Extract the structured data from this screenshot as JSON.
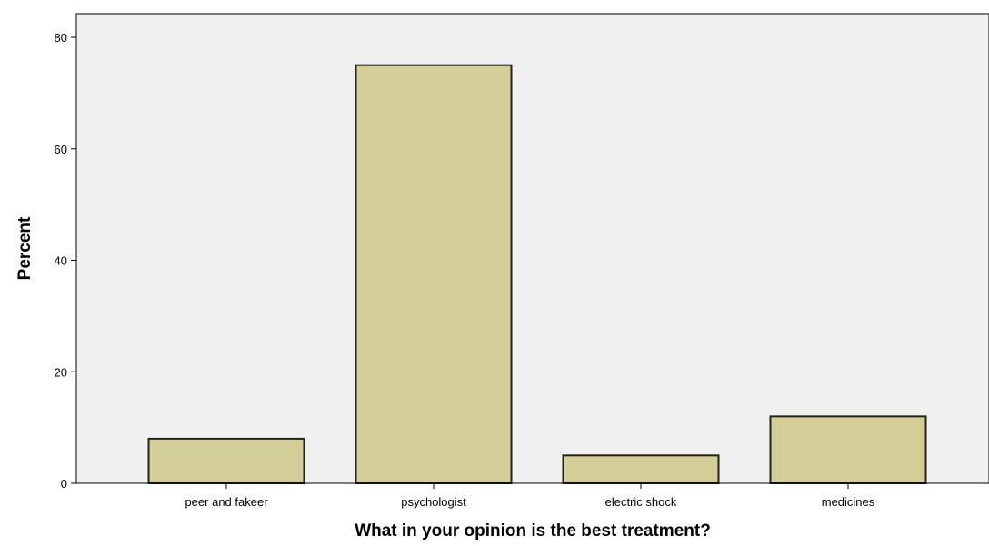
{
  "chart_data": {
    "type": "bar",
    "categories": [
      "peer and fakeer",
      "psychologist",
      "electric shock",
      "medicines"
    ],
    "values": [
      8,
      75,
      5,
      12
    ],
    "title": "",
    "xlabel": "What in your opinion is the best treatment?",
    "ylabel": "Percent",
    "ylim": [
      0,
      80
    ],
    "yticks": [
      0,
      20,
      40,
      60,
      80
    ],
    "ytick_labels": [
      "0",
      "20",
      "40",
      "60",
      "80"
    ],
    "grid": false,
    "legend": "none",
    "colors": {
      "bar_fill": "#d3ce98",
      "bar_stroke": "#222222",
      "plot_background": "#f0f0f0",
      "axis": "#000000"
    }
  }
}
